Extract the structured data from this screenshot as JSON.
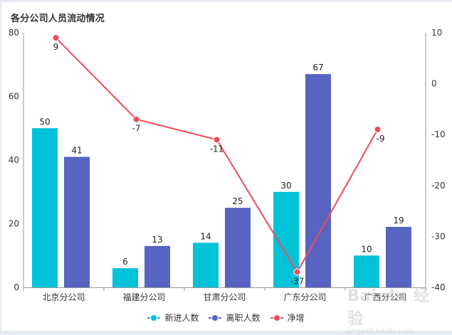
{
  "title": "各分公司人员流动情况",
  "colors": {
    "new_hires": "#00C2D9",
    "departures": "#5864C1",
    "net": "#EE4D5C",
    "axis": "#999999"
  },
  "legend": [
    {
      "label": "新进人数",
      "color": "#00C2D9"
    },
    {
      "label": "离职人数",
      "color": "#5864C1"
    },
    {
      "label": "净增",
      "color": "#EE4D5C"
    }
  ],
  "watermark": {
    "main": "Bai du 经验",
    "sub": "jingyan.baidu.com"
  },
  "chart_data": {
    "type": "bar",
    "title": "各分公司人员流动情况",
    "categories": [
      "北京分公司",
      "福建分公司",
      "甘肃分公司",
      "广东分公司",
      "广西分公司"
    ],
    "series": [
      {
        "name": "新进人数",
        "type": "bar",
        "axis": "left",
        "values": [
          50,
          6,
          14,
          30,
          10
        ]
      },
      {
        "name": "离职人数",
        "type": "bar",
        "axis": "left",
        "values": [
          41,
          13,
          25,
          67,
          19
        ]
      },
      {
        "name": "净增",
        "type": "line",
        "axis": "right",
        "values": [
          9,
          -7,
          -11,
          -37,
          -9
        ]
      }
    ],
    "y_left": {
      "min": 0,
      "max": 80,
      "ticks": [
        0,
        20,
        40,
        60,
        80
      ]
    },
    "y_right": {
      "min": -40,
      "max": 10,
      "ticks": [
        10,
        0,
        -10,
        -20,
        -30,
        -40
      ]
    },
    "xlabel": "",
    "ylabel": "",
    "grid": false,
    "data_labels": true,
    "legend_position": "bottom"
  }
}
